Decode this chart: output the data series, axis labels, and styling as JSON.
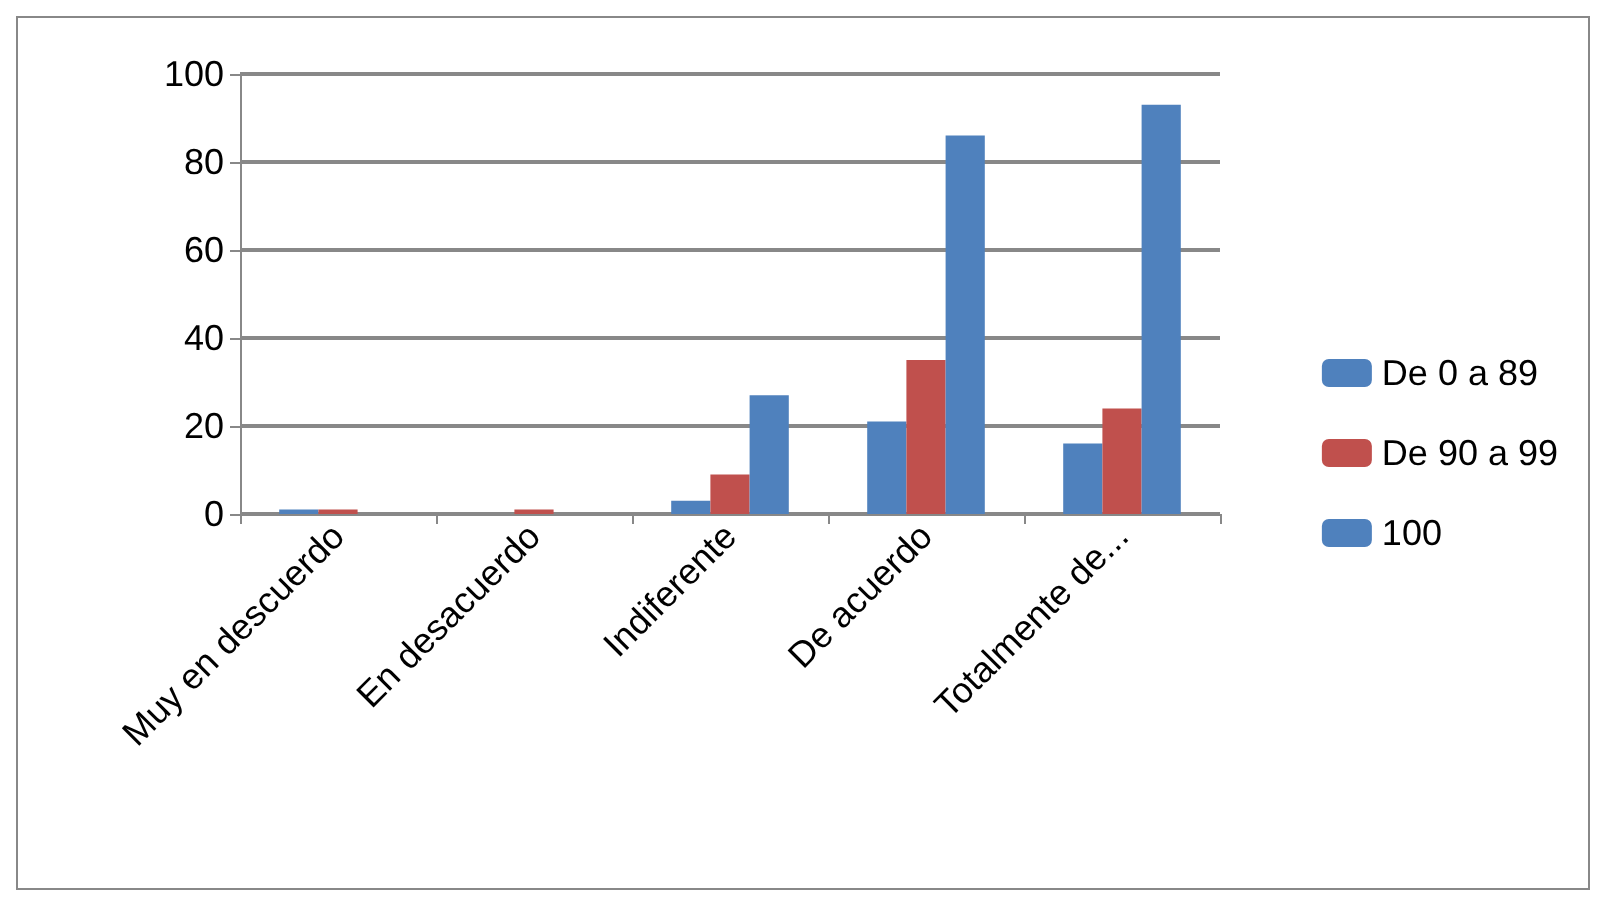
{
  "chart_data": {
    "type": "bar",
    "categories": [
      "Muy en descuerdo",
      "En desacuerdo",
      "Indiferente",
      "De acuerdo",
      "Totalmente de..."
    ],
    "series": [
      {
        "name": "De 0 a 89",
        "color": "#4f81bd",
        "values": [
          1,
          0,
          3,
          21,
          16
        ]
      },
      {
        "name": "De 90 a 99",
        "color": "#c0504d",
        "values": [
          1,
          1,
          9,
          35,
          24
        ]
      },
      {
        "name": "100",
        "color": "#4f81bd",
        "values": [
          0,
          0,
          27,
          86,
          93
        ]
      }
    ],
    "ylim": [
      0,
      100
    ],
    "yticks": [
      0,
      20,
      40,
      60,
      80,
      100
    ],
    "grid": "y",
    "legend": "right"
  }
}
